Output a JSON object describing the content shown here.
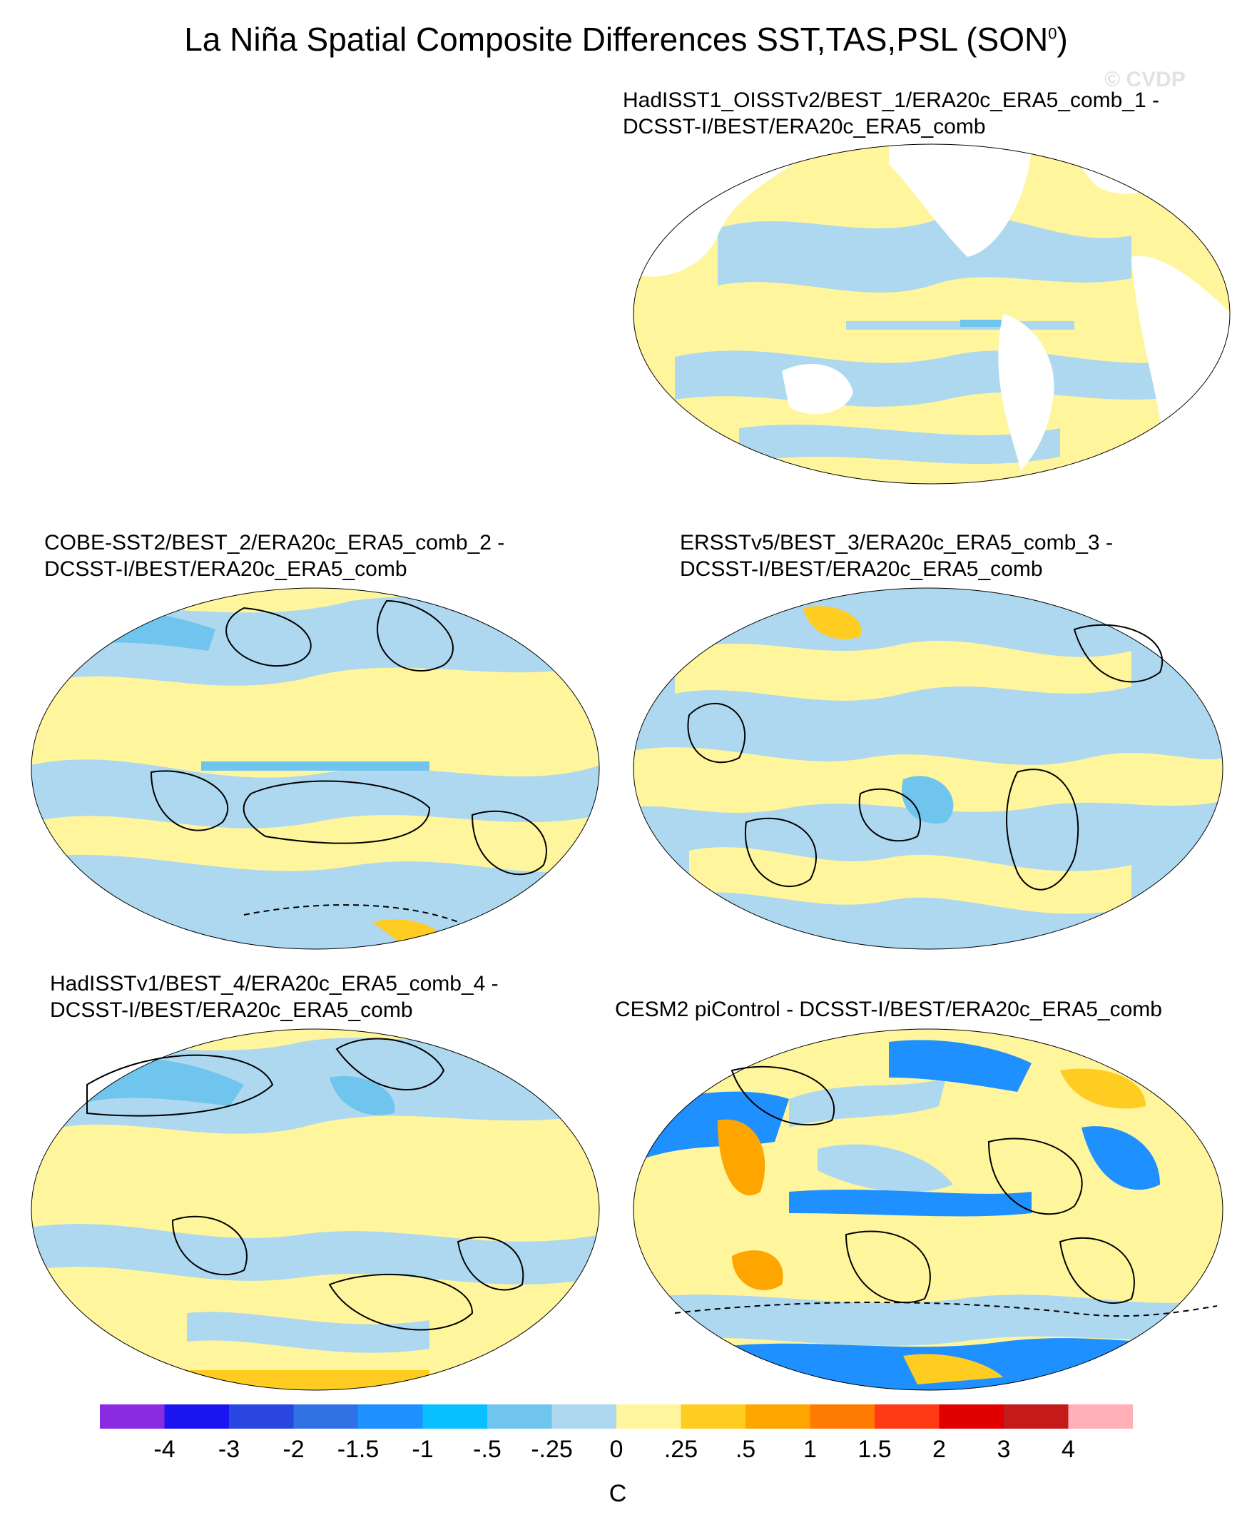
{
  "figure": {
    "title_main": "La Niña Spatial Composite Differences SST,TAS,PSL (SON",
    "title_sup": "0",
    "title_close": ")",
    "watermark": "© CVDP"
  },
  "panels": [
    {
      "line1": "HadISST1_OISSTv2/BEST_1/ERA20c_ERA5_comb_1 -",
      "line2": "DCSST-I/BEST/ERA20c_ERA5_comb"
    },
    {
      "line1": "COBE-SST2/BEST_2/ERA20c_ERA5_comb_2 -",
      "line2": "DCSST-I/BEST/ERA20c_ERA5_comb"
    },
    {
      "line1": "ERSSTv5/BEST_3/ERA20c_ERA5_comb_3 -",
      "line2": "DCSST-I/BEST/ERA20c_ERA5_comb"
    },
    {
      "line1": "HadISSTv1/BEST_4/ERA20c_ERA5_comb_4 -",
      "line2": "DCSST-I/BEST/ERA20c_ERA5_comb"
    },
    {
      "line1": "CESM2 piControl - DCSST-I/BEST/ERA20c_ERA5_comb",
      "line2": ""
    }
  ],
  "chart_data": {
    "type": "heatmap",
    "projection": "global equal-area ellipse",
    "units": "C",
    "colorbar": {
      "labels": [
        "-4",
        "-3",
        "-2",
        "-1.5",
        "-1",
        "-.5",
        "-.25",
        "0",
        ".25",
        ".5",
        "1",
        "1.5",
        "2",
        "3",
        "4"
      ],
      "colors": [
        "#8a2be2",
        "#1a14f0",
        "#2a46e0",
        "#3072e6",
        "#1e90ff",
        "#08bfff",
        "#6fc5ee",
        "#add8ef",
        "#fff59d",
        "#ffcc22",
        "#ffa500",
        "#ff7a00",
        "#ff3a14",
        "#e00000",
        "#c41a1a",
        "#ffb0b8"
      ]
    },
    "maps": [
      {
        "panel": 1,
        "land_masked": true,
        "psl_contours": false
      },
      {
        "panel": 2,
        "land_masked": false,
        "psl_contours": true
      },
      {
        "panel": 3,
        "land_masked": false,
        "psl_contours": true
      },
      {
        "panel": 4,
        "land_masked": false,
        "psl_contours": true
      },
      {
        "panel": 5,
        "land_masked": false,
        "psl_contours": true
      }
    ]
  }
}
